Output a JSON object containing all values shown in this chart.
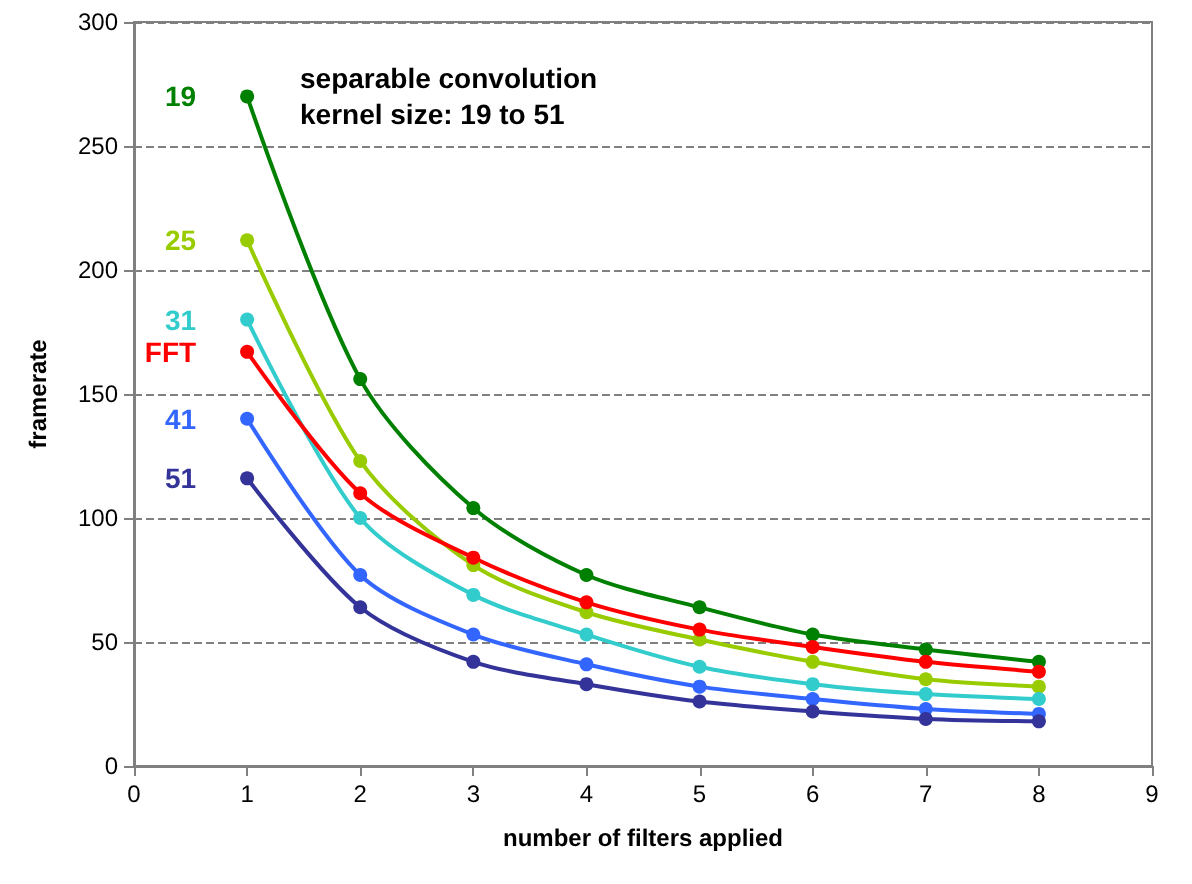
{
  "chart_data": {
    "type": "line",
    "xlabel": "number of filters applied",
    "ylabel": "framerate",
    "annotations": [
      "separable convolution\nkernel size: 19 to 51"
    ],
    "x": [
      1,
      2,
      3,
      4,
      5,
      6,
      7,
      8
    ],
    "series": [
      {
        "name": "19",
        "color": "#008000",
        "values": [
          270,
          156,
          104,
          77,
          64,
          53,
          47,
          42
        ]
      },
      {
        "name": "25",
        "color": "#99cc00",
        "values": [
          212,
          123,
          81,
          62,
          51,
          42,
          35,
          32
        ]
      },
      {
        "name": "31",
        "color": "#33cccc",
        "values": [
          180,
          100,
          69,
          53,
          40,
          33,
          29,
          27
        ]
      },
      {
        "name": "FFT",
        "color": "#ff0000",
        "values": [
          167,
          110,
          84,
          66,
          55,
          48,
          42,
          38
        ]
      },
      {
        "name": "41",
        "color": "#3366ff",
        "values": [
          140,
          77,
          53,
          41,
          32,
          27,
          23,
          21
        ]
      },
      {
        "name": "51",
        "color": "#333399",
        "values": [
          116,
          64,
          42,
          33,
          26,
          22,
          19,
          18
        ]
      }
    ],
    "xlim": [
      0,
      9
    ],
    "xticks": [
      0,
      1,
      2,
      3,
      4,
      5,
      6,
      7,
      8,
      9
    ],
    "ylim": [
      0,
      300
    ],
    "yticks": [
      0,
      50,
      100,
      150,
      200,
      250,
      300
    ],
    "grid": "y",
    "legend": false,
    "marker": "circle",
    "line_style": "solid"
  }
}
